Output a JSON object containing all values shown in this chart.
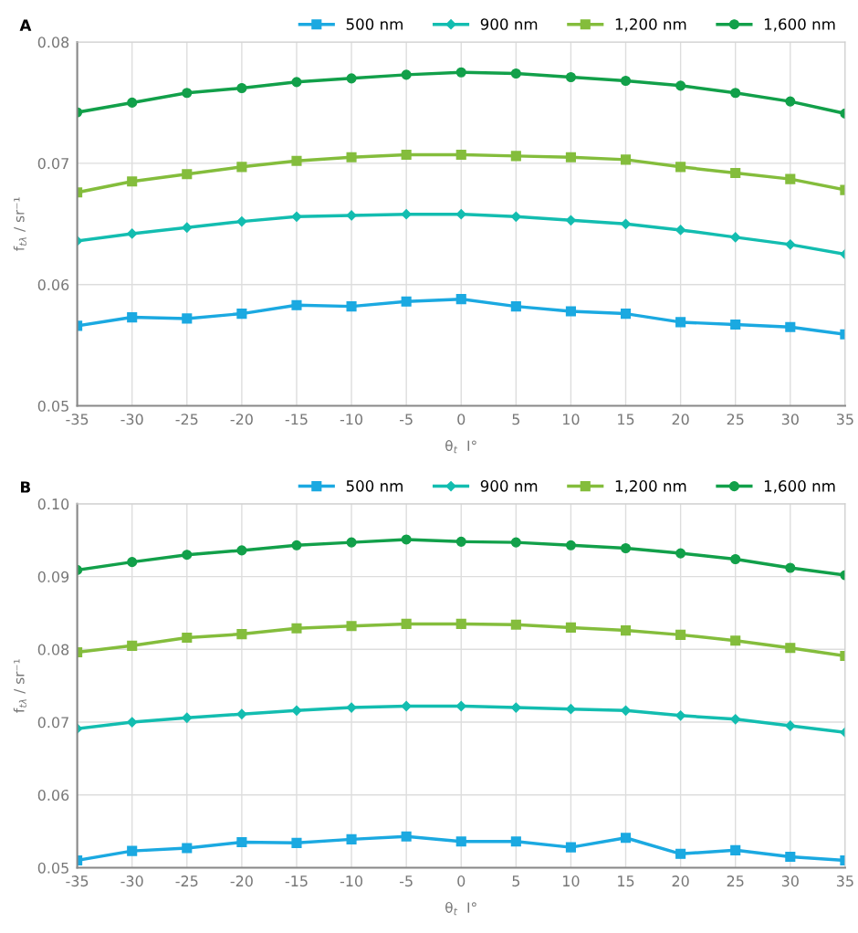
{
  "chart_data": [
    {
      "type": "line",
      "title": "A",
      "xlabel": "θ$_{t}$  I°",
      "ylabel": "f$_{tλ}$ / sr⁻¹",
      "x": [
        -35,
        -30,
        -25,
        -20,
        -15,
        -10,
        -5,
        0,
        5,
        10,
        15,
        20,
        25,
        30,
        35
      ],
      "xlim": [
        -35,
        35
      ],
      "xticks": [
        -35,
        -30,
        -25,
        -20,
        -15,
        -10,
        -5,
        0,
        5,
        10,
        15,
        20,
        25,
        30,
        35
      ],
      "ylim": [
        0.05,
        0.08
      ],
      "yticks": [
        0.05,
        0.06,
        0.07,
        0.08
      ],
      "grid": true,
      "legend": "top right",
      "series": [
        {
          "name": "500 nm",
          "color": "#1ba9e1",
          "marker": "square",
          "values": [
            0.0566,
            0.0573,
            0.0572,
            0.0576,
            0.0583,
            0.0582,
            0.0586,
            0.0588,
            0.0582,
            0.0578,
            0.0576,
            0.0569,
            0.0567,
            0.0565,
            0.0559
          ]
        },
        {
          "name": "900 nm",
          "color": "#13bdb0",
          "marker": "diamond",
          "values": [
            0.0636,
            0.0642,
            0.0647,
            0.0652,
            0.0656,
            0.0657,
            0.0658,
            0.0658,
            0.0656,
            0.0653,
            0.065,
            0.0645,
            0.0639,
            0.0633,
            0.0625
          ]
        },
        {
          "name": "1,200 nm",
          "color": "#84bd3c",
          "marker": "square",
          "values": [
            0.0676,
            0.0685,
            0.0691,
            0.0697,
            0.0702,
            0.0705,
            0.0707,
            0.0707,
            0.0706,
            0.0705,
            0.0703,
            0.0697,
            0.0692,
            0.0687,
            0.0678
          ]
        },
        {
          "name": "1,600 nm",
          "color": "#12a04a",
          "marker": "circle",
          "values": [
            0.0742,
            0.075,
            0.0758,
            0.0762,
            0.0767,
            0.077,
            0.0773,
            0.0775,
            0.0774,
            0.0771,
            0.0768,
            0.0764,
            0.0758,
            0.0751,
            0.0741
          ]
        }
      ]
    },
    {
      "type": "line",
      "title": "B",
      "xlabel": "θ$_{t}$  I°",
      "ylabel": "f$_{tλ}$ / sr⁻¹",
      "x": [
        -35,
        -30,
        -25,
        -20,
        -15,
        -10,
        -5,
        0,
        5,
        10,
        15,
        20,
        25,
        30,
        35
      ],
      "xlim": [
        -35,
        35
      ],
      "xticks": [
        -35,
        -30,
        -25,
        -20,
        -15,
        -10,
        -5,
        0,
        5,
        10,
        15,
        20,
        25,
        30,
        35
      ],
      "ylim": [
        0.05,
        0.1
      ],
      "yticks": [
        0.05,
        0.06,
        0.07,
        0.08,
        0.09,
        {
          "value": 0.1,
          "label": "0.10"
        }
      ],
      "grid": true,
      "legend": "top right",
      "series": [
        {
          "name": "500 nm",
          "color": "#1ba9e1",
          "marker": "square",
          "values": [
            0.051,
            0.0523,
            0.0527,
            0.0535,
            0.0534,
            0.0539,
            0.0543,
            0.0536,
            0.0536,
            0.0528,
            0.0541,
            0.0519,
            0.0524,
            0.0515,
            0.051
          ]
        },
        {
          "name": "900 nm",
          "color": "#13bdb0",
          "marker": "diamond",
          "values": [
            0.0691,
            0.07,
            0.0706,
            0.0711,
            0.0716,
            0.072,
            0.0722,
            0.0722,
            0.072,
            0.0718,
            0.0716,
            0.0709,
            0.0704,
            0.0695,
            0.0686
          ]
        },
        {
          "name": "1,200 nm",
          "color": "#84bd3c",
          "marker": "square",
          "values": [
            0.0796,
            0.0805,
            0.0816,
            0.0821,
            0.0829,
            0.0832,
            0.0835,
            0.0835,
            0.0834,
            0.083,
            0.0826,
            0.082,
            0.0812,
            0.0802,
            0.0791
          ]
        },
        {
          "name": "1,600 nm",
          "color": "#12a04a",
          "marker": "circle",
          "values": [
            0.0909,
            0.092,
            0.093,
            0.0936,
            0.0943,
            0.0947,
            0.0951,
            0.0948,
            0.0947,
            0.0943,
            0.0939,
            0.0932,
            0.0924,
            0.0912,
            0.0902
          ]
        }
      ]
    }
  ]
}
